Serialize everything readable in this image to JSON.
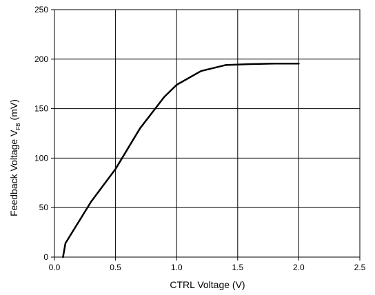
{
  "chart_data": {
    "type": "line",
    "xlabel": "CTRL Voltage (V)",
    "ylabel": {
      "main": "Feedback Voltage V",
      "subscript": "FB",
      "unit": " (mV)"
    },
    "xlim": [
      0,
      2.5
    ],
    "ylim": [
      0,
      250
    ],
    "xticks": [
      0.0,
      0.5,
      1.0,
      1.5,
      2.0,
      2.5
    ],
    "xtick_labels": [
      "0.0",
      "0.5",
      "1.0",
      "1.5",
      "2.0",
      "2.5"
    ],
    "yticks": [
      0,
      50,
      100,
      150,
      200,
      250
    ],
    "ytick_labels": [
      "0",
      "50",
      "100",
      "150",
      "200",
      "250"
    ],
    "grid": true,
    "series": [
      {
        "color": "#000000",
        "x": [
          0.07,
          0.09,
          0.3,
          0.5,
          0.7,
          0.9,
          1.0,
          1.2,
          1.4,
          1.6,
          1.8,
          2.0
        ],
        "y": [
          0,
          14,
          56,
          89,
          130,
          162,
          174,
          188,
          194,
          195,
          195.5,
          195.5
        ]
      }
    ]
  }
}
